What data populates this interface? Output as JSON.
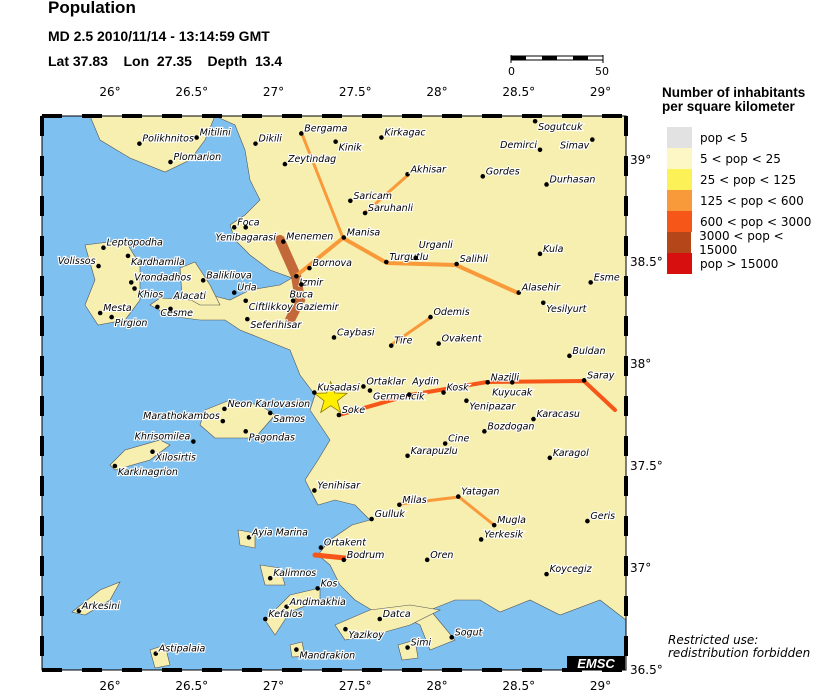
{
  "header": {
    "title": "Population",
    "event_line": "MD 2.5  2010/11/14 - 13:14:59 GMT",
    "location_line": "Lat 37.83    Lon  27.35    Depth  13.4"
  },
  "event": {
    "lat": 37.83,
    "lon": 27.35,
    "depth": 13.4,
    "magnitude": "MD 2.5",
    "marker": "star-icon",
    "marker_color": "#ffee00"
  },
  "scale_bar": {
    "min_label": "0",
    "max_label": "50"
  },
  "map": {
    "lon_range": [
      25.6,
      29.1
    ],
    "lat_range": [
      36.5,
      39.22
    ],
    "lon_ticks": [
      "26°",
      "26.5°",
      "27°",
      "27.5°",
      "28°",
      "28.5°",
      "29°"
    ],
    "lat_ticks": [
      "39°",
      "38.5°",
      "38°",
      "37.5°",
      "37°",
      "36.5°"
    ],
    "sea_color": "#7ec0f0",
    "cities": [
      {
        "name": "Polikhnitos",
        "lon": 26.18,
        "lat": 39.08
      },
      {
        "name": "Mitilini",
        "lon": 26.53,
        "lat": 39.11
      },
      {
        "name": "Plomarion",
        "lon": 26.37,
        "lat": 38.99
      },
      {
        "name": "Dikili",
        "lon": 26.89,
        "lat": 39.08
      },
      {
        "name": "Bergama",
        "lon": 27.17,
        "lat": 39.13
      },
      {
        "name": "Kinik",
        "lon": 27.38,
        "lat": 39.09
      },
      {
        "name": "Kirkagac",
        "lon": 27.66,
        "lat": 39.11
      },
      {
        "name": "Sogutcuk",
        "lon": 28.6,
        "lat": 39.19
      },
      {
        "name": "Simav",
        "lon": 28.95,
        "lat": 39.1
      },
      {
        "name": "Demirci",
        "lon": 28.63,
        "lat": 39.05
      },
      {
        "name": "Zeytindag",
        "lon": 27.07,
        "lat": 38.98
      },
      {
        "name": "Akhisar",
        "lon": 27.82,
        "lat": 38.93
      },
      {
        "name": "Gordes",
        "lon": 28.28,
        "lat": 38.92
      },
      {
        "name": "Durhasan",
        "lon": 28.67,
        "lat": 38.88
      },
      {
        "name": "Saricam",
        "lon": 27.47,
        "lat": 38.8
      },
      {
        "name": "Saruhanli",
        "lon": 27.56,
        "lat": 38.74
      },
      {
        "name": "Foca",
        "lon": 26.76,
        "lat": 38.67
      },
      {
        "name": "Yenibagarasi",
        "lon": 26.83,
        "lat": 38.67
      },
      {
        "name": "Leptopodha",
        "lon": 25.96,
        "lat": 38.57
      },
      {
        "name": "Kardhamila",
        "lon": 26.11,
        "lat": 38.53
      },
      {
        "name": "Menemen",
        "lon": 27.06,
        "lat": 38.6
      },
      {
        "name": "Manisa",
        "lon": 27.43,
        "lat": 38.62
      },
      {
        "name": "Volissos",
        "lon": 25.93,
        "lat": 38.48
      },
      {
        "name": "Turgutlu",
        "lon": 27.69,
        "lat": 38.5
      },
      {
        "name": "Urganli",
        "lon": 27.87,
        "lat": 38.52
      },
      {
        "name": "Salihli",
        "lon": 28.12,
        "lat": 38.49
      },
      {
        "name": "Kula",
        "lon": 28.63,
        "lat": 38.54
      },
      {
        "name": "Bornova",
        "lon": 27.22,
        "lat": 38.47
      },
      {
        "name": "Izmir",
        "lon": 27.14,
        "lat": 38.43
      },
      {
        "name": "Buca",
        "lon": 27.17,
        "lat": 38.39
      },
      {
        "name": "Gaziemir",
        "lon": 27.12,
        "lat": 38.31
      },
      {
        "name": "Vrondadhos",
        "lon": 26.13,
        "lat": 38.4
      },
      {
        "name": "Khios",
        "lon": 26.15,
        "lat": 38.37
      },
      {
        "name": "Balikliova",
        "lon": 26.57,
        "lat": 38.41
      },
      {
        "name": "Urla",
        "lon": 26.76,
        "lat": 38.35
      },
      {
        "name": "Ciftlikkoy",
        "lon": 26.83,
        "lat": 38.31
      },
      {
        "name": "Cesme",
        "lon": 26.29,
        "lat": 38.28
      },
      {
        "name": "Alacati",
        "lon": 26.37,
        "lat": 38.27
      },
      {
        "name": "Mesta",
        "lon": 25.94,
        "lat": 38.25
      },
      {
        "name": "Pirgion",
        "lon": 26.01,
        "lat": 38.23
      },
      {
        "name": "Seferihisar",
        "lon": 26.84,
        "lat": 38.22
      },
      {
        "name": "Alasehir",
        "lon": 28.5,
        "lat": 38.35
      },
      {
        "name": "Yesilyurt",
        "lon": 28.65,
        "lat": 38.3
      },
      {
        "name": "Esme",
        "lon": 28.94,
        "lat": 38.4
      },
      {
        "name": "Caybasi",
        "lon": 27.37,
        "lat": 38.13
      },
      {
        "name": "Odemis",
        "lon": 27.96,
        "lat": 38.23
      },
      {
        "name": "Tire",
        "lon": 27.72,
        "lat": 38.09
      },
      {
        "name": "Ovakent",
        "lon": 28.01,
        "lat": 38.1
      },
      {
        "name": "Buldan",
        "lon": 28.81,
        "lat": 38.04
      },
      {
        "name": "Kusadasi",
        "lon": 27.25,
        "lat": 37.86
      },
      {
        "name": "Ortaklar",
        "lon": 27.55,
        "lat": 37.89
      },
      {
        "name": "Germencik",
        "lon": 27.59,
        "lat": 37.87
      },
      {
        "name": "Aydin",
        "lon": 27.83,
        "lat": 37.85
      },
      {
        "name": "Kosk",
        "lon": 28.04,
        "lat": 37.86
      },
      {
        "name": "Nazilli",
        "lon": 28.31,
        "lat": 37.91
      },
      {
        "name": "Kuyucak",
        "lon": 28.46,
        "lat": 37.91
      },
      {
        "name": "Yenipazar",
        "lon": 28.18,
        "lat": 37.82
      },
      {
        "name": "Saray",
        "lon": 28.9,
        "lat": 37.92
      },
      {
        "name": "Soke",
        "lon": 27.4,
        "lat": 37.75
      },
      {
        "name": "Karacasu",
        "lon": 28.59,
        "lat": 37.73
      },
      {
        "name": "Bozdogan",
        "lon": 28.29,
        "lat": 37.67
      },
      {
        "name": "Cine",
        "lon": 28.05,
        "lat": 37.61
      },
      {
        "name": "Karapuzlu",
        "lon": 27.82,
        "lat": 37.55
      },
      {
        "name": "Karagol",
        "lon": 28.69,
        "lat": 37.54
      },
      {
        "name": "Neon Karlovasion",
        "lon": 26.7,
        "lat": 37.78
      },
      {
        "name": "Samos",
        "lon": 26.98,
        "lat": 37.76
      },
      {
        "name": "Marathokambos",
        "lon": 26.69,
        "lat": 37.72
      },
      {
        "name": "Pagondas",
        "lon": 26.83,
        "lat": 37.67
      },
      {
        "name": "Khrisomilea",
        "lon": 26.51,
        "lat": 37.62
      },
      {
        "name": "Xilosirtis",
        "lon": 26.26,
        "lat": 37.57
      },
      {
        "name": "Karkinagrion",
        "lon": 26.03,
        "lat": 37.5
      },
      {
        "name": "Yenihisar",
        "lon": 27.25,
        "lat": 37.38
      },
      {
        "name": "Milas",
        "lon": 27.77,
        "lat": 37.31
      },
      {
        "name": "Yatagan",
        "lon": 28.13,
        "lat": 37.35
      },
      {
        "name": "Gulluk",
        "lon": 27.6,
        "lat": 37.24
      },
      {
        "name": "Mugla",
        "lon": 28.35,
        "lat": 37.21
      },
      {
        "name": "Geris",
        "lon": 28.92,
        "lat": 37.23
      },
      {
        "name": "Yerkesik",
        "lon": 28.27,
        "lat": 37.14
      },
      {
        "name": "Ayia Marina",
        "lon": 26.85,
        "lat": 37.15
      },
      {
        "name": "Ortakent",
        "lon": 27.29,
        "lat": 37.1
      },
      {
        "name": "Bodrum",
        "lon": 27.43,
        "lat": 37.04
      },
      {
        "name": "Oren",
        "lon": 27.94,
        "lat": 37.04
      },
      {
        "name": "Kalimnos",
        "lon": 26.98,
        "lat": 36.95
      },
      {
        "name": "Kos",
        "lon": 27.27,
        "lat": 36.9
      },
      {
        "name": "Koycegiz",
        "lon": 28.67,
        "lat": 36.97
      },
      {
        "name": "Arkesini",
        "lon": 25.81,
        "lat": 36.79
      },
      {
        "name": "Andimakhia",
        "lon": 27.08,
        "lat": 36.81
      },
      {
        "name": "Kefalos",
        "lon": 26.95,
        "lat": 36.75
      },
      {
        "name": "Datca",
        "lon": 27.65,
        "lat": 36.75
      },
      {
        "name": "Yazikoy",
        "lon": 27.44,
        "lat": 36.7
      },
      {
        "name": "Sogut",
        "lon": 28.09,
        "lat": 36.66
      },
      {
        "name": "Simi",
        "lon": 27.82,
        "lat": 36.61
      },
      {
        "name": "Mandrakion",
        "lon": 27.14,
        "lat": 36.6
      },
      {
        "name": "Astipalaia",
        "lon": 26.28,
        "lat": 36.58
      }
    ]
  },
  "legend": {
    "title_line1": "Number of inhabitants",
    "title_line2": "per square kilometer",
    "items": [
      {
        "label": "pop < 5",
        "color": "#e2e2e2"
      },
      {
        "label": "5 < pop < 25",
        "color": "#fcf7c4"
      },
      {
        "label": "25 < pop < 125",
        "color": "#fcf257"
      },
      {
        "label": "125 < pop < 600",
        "color": "#f99a3a"
      },
      {
        "label": "600 < pop < 3000",
        "color": "#f65718"
      },
      {
        "label": "3000 < pop < 15000",
        "color": "#b5461a"
      },
      {
        "label": "pop > 15000",
        "color": "#d70f0f"
      }
    ]
  },
  "logo": {
    "text": "EMSC"
  },
  "notice": {
    "line1": "Restricted use:",
    "line2": "redistribution forbidden"
  }
}
